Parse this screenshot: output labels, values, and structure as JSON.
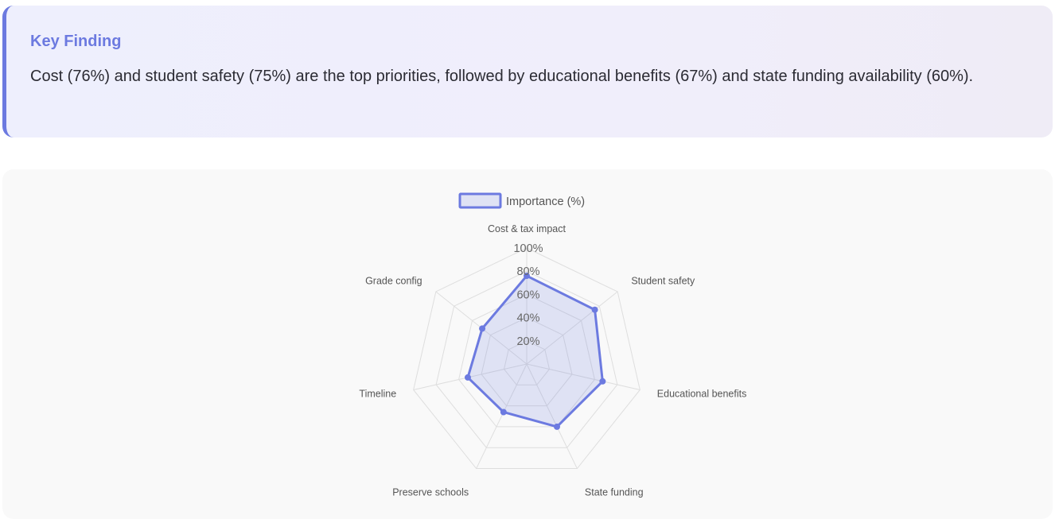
{
  "finding": {
    "title": "Key Finding",
    "text": "Cost (76%) and student safety (75%) are the top priorities, followed by educational benefits (67%) and state funding availability (60%)."
  },
  "colors": {
    "accent": "#6c7ae0",
    "fill": "rgba(108,122,224,0.18)",
    "grid": "#dedede"
  },
  "chart_data": {
    "type": "radar",
    "title": "",
    "legend": {
      "position": "top",
      "label": "Importance (%)"
    },
    "categories": [
      "Cost & tax impact",
      "Student safety",
      "Educational benefits",
      "State funding",
      "Preserve schools",
      "Timeline",
      "Grade config"
    ],
    "series": [
      {
        "name": "Importance (%)",
        "values": [
          76,
          75,
          67,
          60,
          46,
          52,
          49
        ]
      }
    ],
    "rlim": [
      0,
      100
    ],
    "ticks": [
      "20%",
      "40%",
      "60%",
      "80%",
      "100%"
    ],
    "tick_values": [
      20,
      40,
      60,
      80,
      100
    ],
    "grid": true
  }
}
